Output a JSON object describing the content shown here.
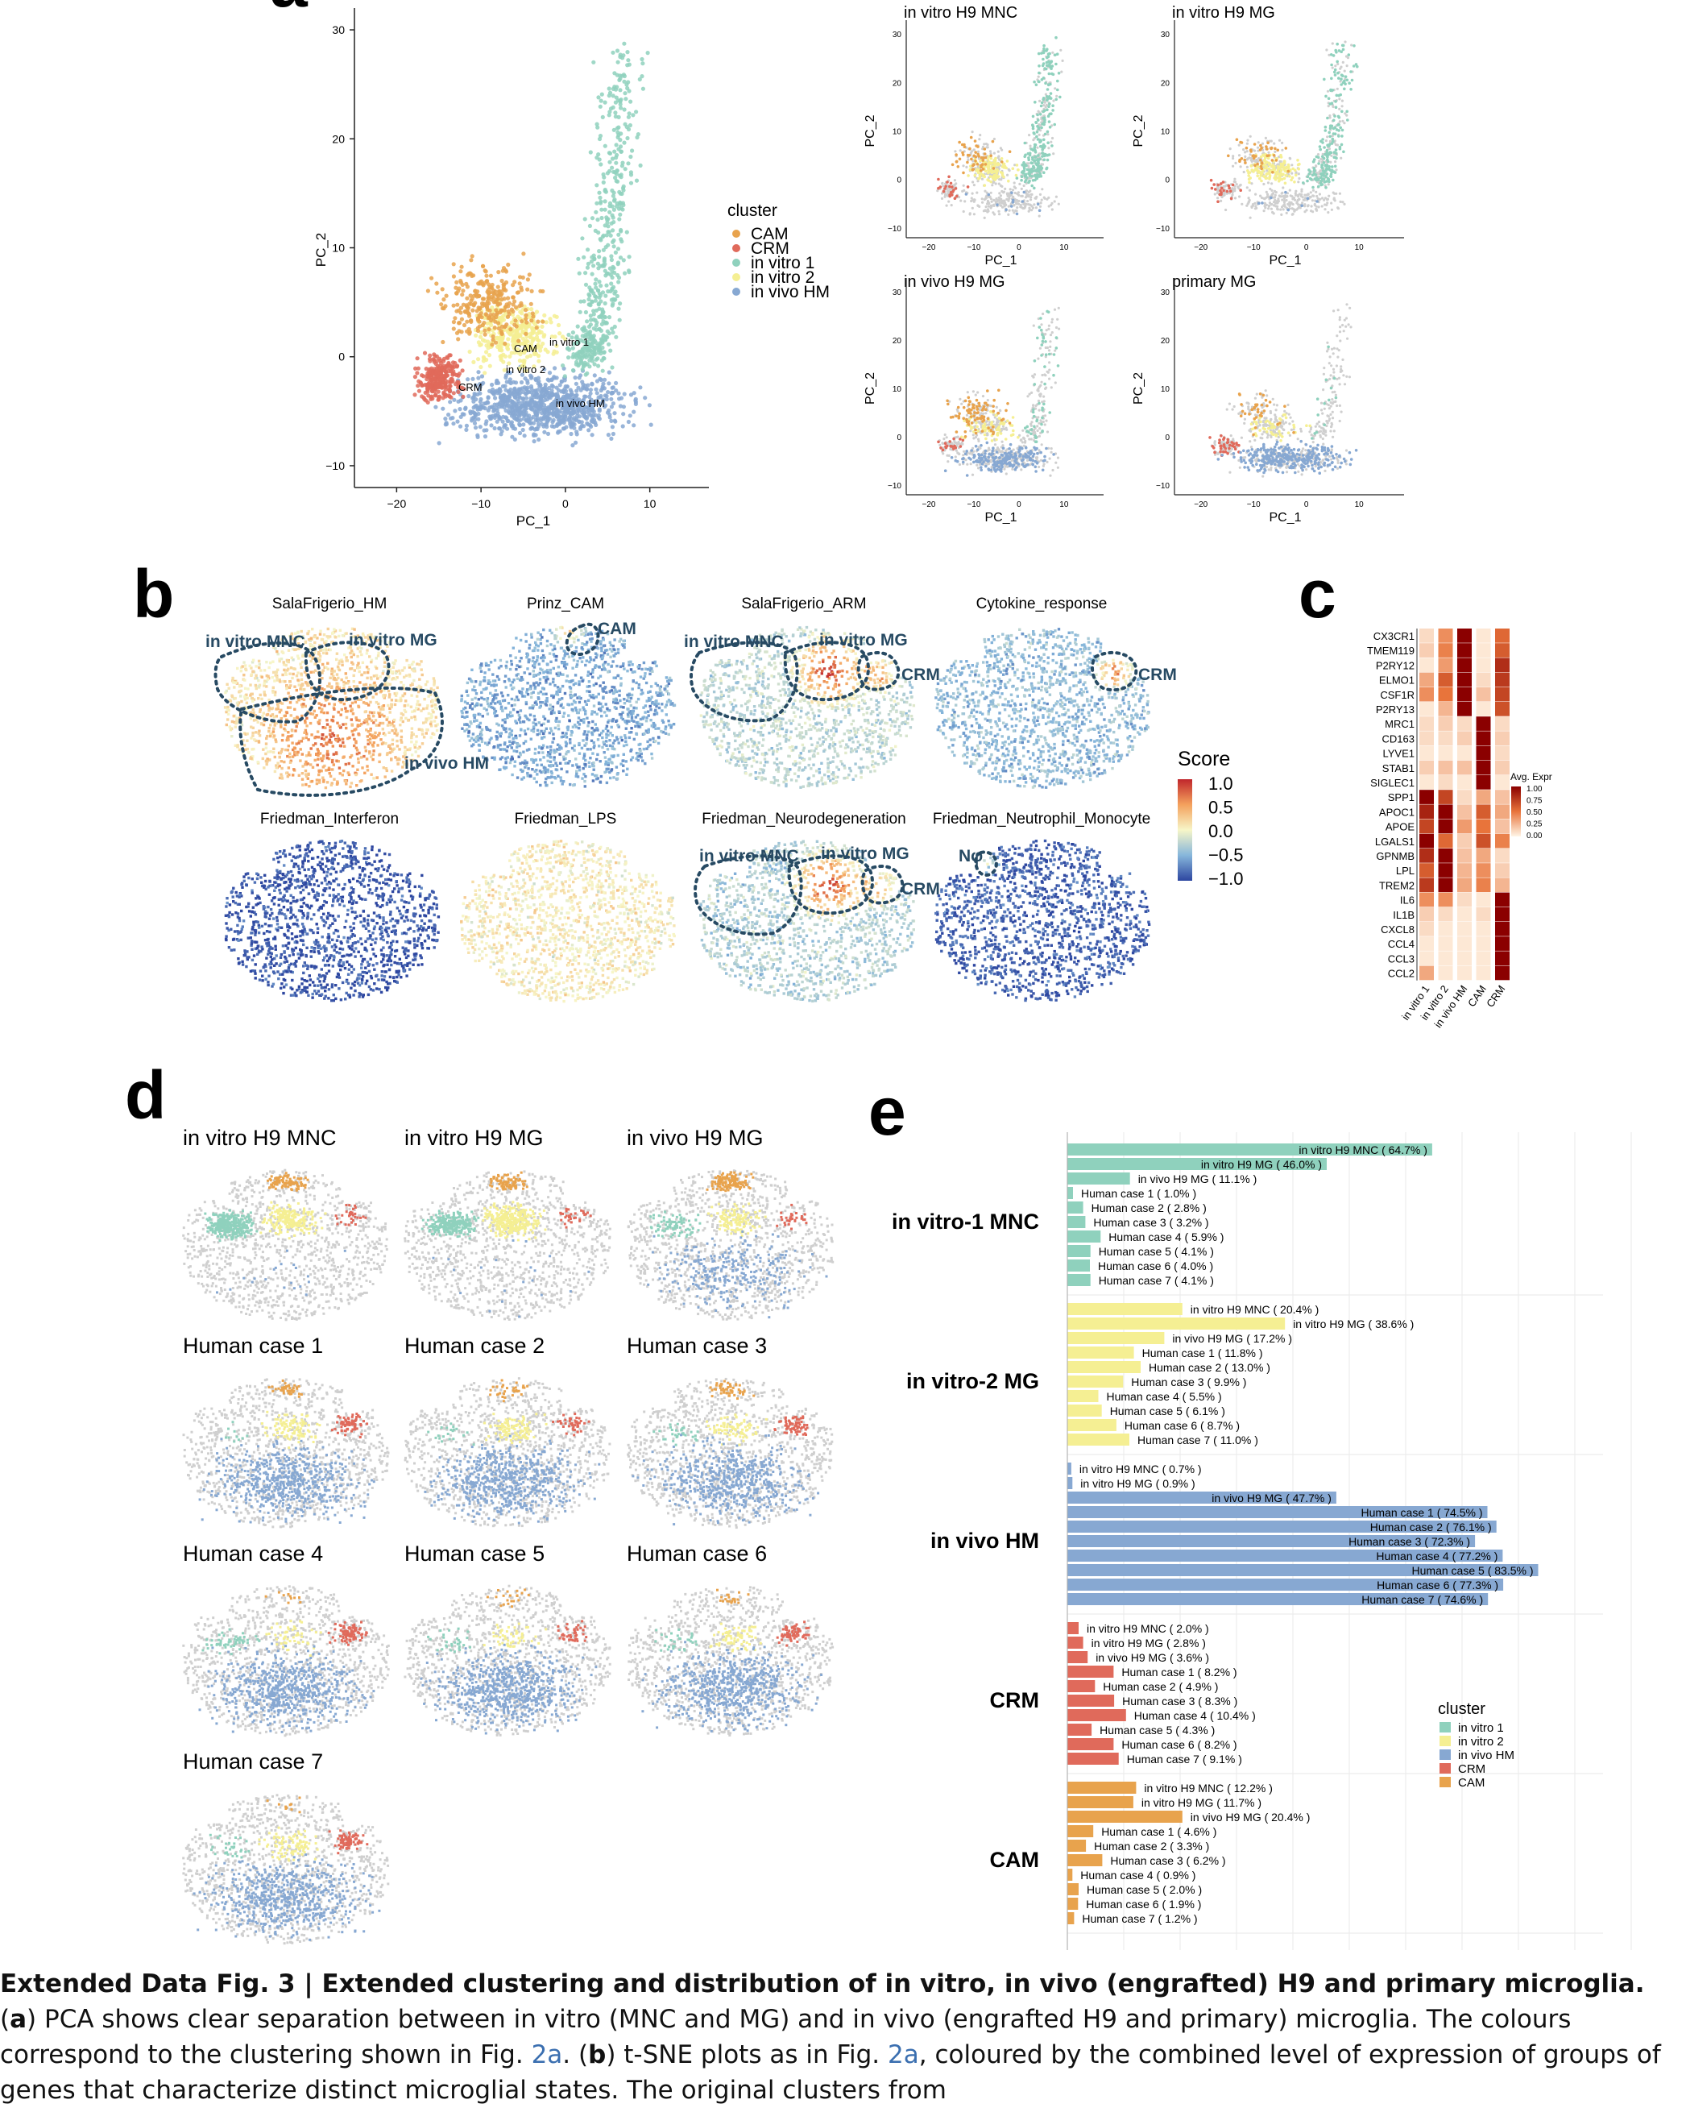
{
  "colors": {
    "CAM": "#e8a34d",
    "CRM": "#e06a5b",
    "in_vitro_1": "#8fd1bd",
    "in_vitro_2": "#f5ef93",
    "in_vivo_HM": "#87a8d2",
    "background_cells": "#cfcfcf"
  },
  "panel_a": {
    "letter": "a",
    "main": {
      "xlabel": "PC_1",
      "ylabel": "PC_2",
      "xticks": [
        "−20",
        "−10",
        "0",
        "10"
      ],
      "yticks": [
        "30",
        "20",
        "10",
        "0",
        "−10"
      ],
      "cluster_labels": [
        "CAM",
        "in vitro 1",
        "in vitro 2",
        "CRM",
        "in vivo HM"
      ]
    },
    "legend": {
      "title": "cluster",
      "items": [
        "CAM",
        "CRM",
        "in vitro 1",
        "in vitro 2",
        "in vivo HM"
      ]
    },
    "small": [
      {
        "title": "in vitro H9 MNC"
      },
      {
        "title": "in vitro H9 MG"
      },
      {
        "title": "in vivo H9 MG"
      },
      {
        "title": "primary MG"
      }
    ],
    "small_axes": {
      "xlabel": "PC_1",
      "ylabel": "PC_2",
      "xticks": [
        "−20",
        "−10",
        "0",
        "10"
      ],
      "yticks": [
        "30",
        "20",
        "10",
        "0",
        "−10"
      ]
    }
  },
  "panel_b": {
    "letter": "b",
    "titles": [
      "SalaFrigerio_HM",
      "Prinz_CAM",
      "SalaFrigerio_ARM",
      "Cytokine_response",
      "Friedman_Interferon",
      "Friedman_LPS",
      "Friedman_Neurodegeneration",
      "Friedman_Neutrophil_Monocyte"
    ],
    "annotations": {
      "in_vitro_mnc": "in vitro MNC",
      "in_vitro_mg": "in vitro MG",
      "in_vivo_hm": "in vivo HM",
      "cam": "CAM",
      "crm": "CRM",
      "np": "Nφ"
    },
    "colorbar": {
      "title": "Score",
      "ticks": [
        "1.0",
        "0.5",
        "0.0",
        "−0.5",
        "−1.0"
      ]
    }
  },
  "panel_c": {
    "letter": "c",
    "genes": [
      "CX3CR1",
      "TMEM119",
      "P2RY12",
      "ELMO1",
      "CSF1R",
      "P2RY13",
      "MRC1",
      "CD163",
      "LYVE1",
      "STAB1",
      "SIGLEC1",
      "SPP1",
      "APOC1",
      "APOE",
      "LGALS1",
      "GPNMB",
      "LPL",
      "TREM2",
      "IL6",
      "IL1B",
      "CXCL8",
      "CCL4",
      "CCL3",
      "CCL2"
    ],
    "columns": [
      "in vitro 1",
      "in vitro 2",
      "in vivo HM",
      "CAM",
      "CRM"
    ],
    "matrix": [
      [
        0.1,
        0.4,
        1.0,
        0.05,
        0.55
      ],
      [
        0.15,
        0.45,
        1.0,
        0.05,
        0.6
      ],
      [
        0.05,
        0.35,
        1.0,
        0.05,
        0.8
      ],
      [
        0.3,
        0.6,
        1.0,
        0.1,
        0.75
      ],
      [
        0.4,
        0.5,
        1.0,
        0.2,
        0.7
      ],
      [
        0.05,
        0.25,
        1.0,
        0.05,
        0.65
      ],
      [
        0.1,
        0.15,
        0.1,
        1.0,
        0.1
      ],
      [
        0.1,
        0.1,
        0.15,
        1.0,
        0.15
      ],
      [
        0.05,
        0.05,
        0.05,
        1.0,
        0.1
      ],
      [
        0.15,
        0.2,
        0.2,
        1.0,
        0.15
      ],
      [
        0.05,
        0.1,
        0.05,
        1.0,
        0.05
      ],
      [
        1.0,
        0.7,
        0.1,
        0.3,
        0.2
      ],
      [
        0.85,
        1.0,
        0.2,
        0.6,
        0.3
      ],
      [
        0.7,
        1.0,
        0.35,
        0.5,
        0.2
      ],
      [
        1.0,
        0.55,
        0.15,
        0.65,
        0.45
      ],
      [
        0.8,
        1.0,
        0.2,
        0.3,
        0.1
      ],
      [
        0.6,
        1.0,
        0.25,
        0.4,
        0.15
      ],
      [
        0.75,
        1.0,
        0.3,
        0.45,
        0.25
      ],
      [
        0.4,
        0.4,
        0.1,
        0.05,
        1.0
      ],
      [
        0.15,
        0.1,
        0.05,
        0.1,
        1.0
      ],
      [
        0.1,
        0.05,
        0.05,
        0.05,
        1.0
      ],
      [
        0.05,
        0.05,
        0.05,
        0.05,
        1.0
      ],
      [
        0.05,
        0.05,
        0.05,
        0.05,
        1.0
      ],
      [
        0.3,
        0.05,
        0.05,
        0.05,
        1.0
      ]
    ],
    "legend": {
      "title": "Avg. Expr",
      "ticks": [
        "1.00",
        "0.75",
        "0.50",
        "0.25",
        "0.00"
      ]
    }
  },
  "panel_d": {
    "letter": "d",
    "titles": [
      "in vitro H9 MNC",
      "in vitro H9 MG",
      "in vivo H9 MG",
      "Human case 1",
      "Human case 2",
      "Human case 3",
      "Human case 4",
      "Human case 5",
      "Human case 6",
      "Human case 7"
    ]
  },
  "panel_e": {
    "letter": "e",
    "groups": [
      {
        "label": "in vitro-1 MNC",
        "color_key": "in_vitro_1",
        "rows": [
          {
            "name": "in vitro H9 MNC",
            "pct": 64.7
          },
          {
            "name": "in vitro H9 MG",
            "pct": 46.0
          },
          {
            "name": "in vivo H9 MG",
            "pct": 11.1
          },
          {
            "name": "Human case 1",
            "pct": 1.0
          },
          {
            "name": "Human case 2",
            "pct": 2.8
          },
          {
            "name": "Human case 3",
            "pct": 3.2
          },
          {
            "name": "Human case 4",
            "pct": 5.9
          },
          {
            "name": "Human case 5",
            "pct": 4.1
          },
          {
            "name": "Human case 6",
            "pct": 4.0
          },
          {
            "name": "Human case 7",
            "pct": 4.1
          }
        ]
      },
      {
        "label": "in vitro-2 MG",
        "color_key": "in_vitro_2",
        "rows": [
          {
            "name": "in vitro H9 MNC",
            "pct": 20.4
          },
          {
            "name": "in vitro H9 MG",
            "pct": 38.6
          },
          {
            "name": "in vivo H9 MG",
            "pct": 17.2
          },
          {
            "name": "Human case 1",
            "pct": 11.8
          },
          {
            "name": "Human case 2",
            "pct": 13.0
          },
          {
            "name": "Human case 3",
            "pct": 9.9
          },
          {
            "name": "Human case 4",
            "pct": 5.5
          },
          {
            "name": "Human case 5",
            "pct": 6.1
          },
          {
            "name": "Human case 6",
            "pct": 8.7
          },
          {
            "name": "Human case 7",
            "pct": 11.0
          }
        ]
      },
      {
        "label": "in vivo HM",
        "color_key": "in_vivo_HM",
        "rows": [
          {
            "name": "in vitro H9 MNC",
            "pct": 0.7
          },
          {
            "name": "in vitro H9 MG",
            "pct": 0.9
          },
          {
            "name": "in vivo H9 MG",
            "pct": 47.7
          },
          {
            "name": "Human case 1",
            "pct": 74.5
          },
          {
            "name": "Human case 2",
            "pct": 76.1
          },
          {
            "name": "Human case 3",
            "pct": 72.3
          },
          {
            "name": "Human case 4",
            "pct": 77.2
          },
          {
            "name": "Human case 5",
            "pct": 83.5
          },
          {
            "name": "Human case 6",
            "pct": 77.3
          },
          {
            "name": "Human case 7",
            "pct": 74.6
          }
        ]
      },
      {
        "label": "CRM",
        "color_key": "CRM",
        "rows": [
          {
            "name": "in vitro H9 MNC",
            "pct": 2.0
          },
          {
            "name": "in vitro H9 MG",
            "pct": 2.8
          },
          {
            "name": "in vivo H9 MG",
            "pct": 3.6
          },
          {
            "name": "Human case 1",
            "pct": 8.2
          },
          {
            "name": "Human case 2",
            "pct": 4.9
          },
          {
            "name": "Human case 3",
            "pct": 8.3
          },
          {
            "name": "Human case 4",
            "pct": 10.4
          },
          {
            "name": "Human case 5",
            "pct": 4.3
          },
          {
            "name": "Human case 6",
            "pct": 8.2
          },
          {
            "name": "Human case 7",
            "pct": 9.1
          }
        ]
      },
      {
        "label": "CAM",
        "color_key": "CAM",
        "rows": [
          {
            "name": "in vitro H9 MNC",
            "pct": 12.2
          },
          {
            "name": "in vitro H9 MG",
            "pct": 11.7
          },
          {
            "name": "in vivo H9 MG",
            "pct": 20.4
          },
          {
            "name": "Human case 1",
            "pct": 4.6
          },
          {
            "name": "Human case 2",
            "pct": 3.3
          },
          {
            "name": "Human case 3",
            "pct": 6.2
          },
          {
            "name": "Human case 4",
            "pct": 0.9
          },
          {
            "name": "Human case 5",
            "pct": 2.0
          },
          {
            "name": "Human case 6",
            "pct": 1.9
          },
          {
            "name": "Human case 7",
            "pct": 1.2
          }
        ]
      }
    ],
    "legend": {
      "title": "cluster",
      "items": [
        "in vitro 1",
        "in vitro 2",
        "in vivo HM",
        "CRM",
        "CAM"
      ]
    }
  },
  "chart_data": [
    {
      "type": "bar",
      "orientation": "horizontal",
      "xlim": [
        0,
        100
      ],
      "categories": [
        "in vitro H9 MNC",
        "in vitro H9 MG",
        "in vivo H9 MG",
        "Human case 1",
        "Human case 2",
        "Human case 3",
        "Human case 4",
        "Human case 5",
        "Human case 6",
        "Human case 7"
      ],
      "series": [
        {
          "name": "in vitro-1 MNC",
          "values": [
            64.7,
            46.0,
            11.1,
            1.0,
            2.8,
            3.2,
            5.9,
            4.1,
            4.0,
            4.1
          ]
        },
        {
          "name": "in vitro-2 MG",
          "values": [
            20.4,
            38.6,
            17.2,
            11.8,
            13.0,
            9.9,
            5.5,
            6.1,
            8.7,
            11.0
          ]
        },
        {
          "name": "in vivo HM",
          "values": [
            0.7,
            0.9,
            47.7,
            74.5,
            76.1,
            72.3,
            77.2,
            83.5,
            77.3,
            74.6
          ]
        },
        {
          "name": "CRM",
          "values": [
            2.0,
            2.8,
            3.6,
            8.2,
            4.9,
            8.3,
            10.4,
            4.3,
            8.2,
            9.1
          ]
        },
        {
          "name": "CAM",
          "values": [
            12.2,
            11.7,
            20.4,
            4.6,
            3.3,
            6.2,
            0.9,
            2.0,
            1.9,
            1.2
          ]
        }
      ]
    },
    {
      "type": "heatmap",
      "note_ref": "panel_c"
    }
  ],
  "caption": {
    "fig": "Extended Data Fig. 3 | Extended clustering and distribution of in vitro, in vivo (engrafted) H9 and primary microglia.",
    "a_letter": "a",
    "text1": " PCA shows clear separation between in vitro (MNC and MG) and in vivo (engrafted H9 and primary) microglia. The colours correspond to the clustering shown in Fig. ",
    "link1": "2a",
    "text2": ". (",
    "b_letter": "b",
    "text3": ") t-SNE plots as in Fig. ",
    "link2": "2a",
    "text4": ", coloured by the combined level of expression of groups of genes that characterize distinct microglial states. The original clusters from"
  }
}
